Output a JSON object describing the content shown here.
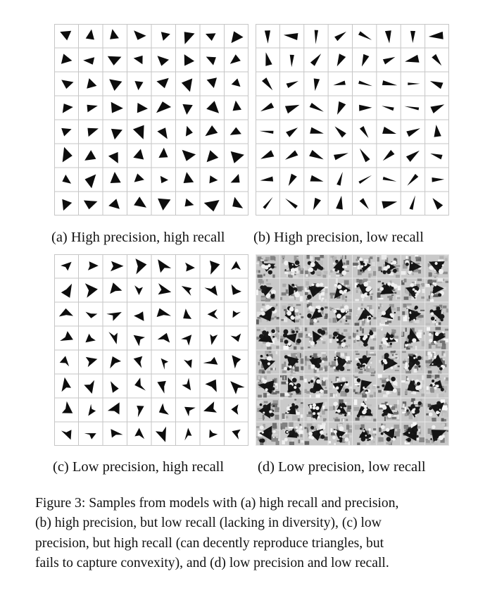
{
  "figure": {
    "panels": [
      {
        "id": "a",
        "caption": "(a) High precision, high recall",
        "style": "clean",
        "seed": 11
      },
      {
        "id": "b",
        "caption": "(b) High precision, low recall",
        "style": "clean-narrow",
        "seed": 23
      },
      {
        "id": "c",
        "caption": "(c) Low precision, high recall",
        "style": "irregular",
        "seed": 37
      },
      {
        "id": "d",
        "caption": "(d) Low precision, low recall",
        "style": "noisy",
        "seed": 53
      }
    ],
    "grid": {
      "rows": 8,
      "cols": 8
    },
    "caption_label": "Figure 3:",
    "caption_lines": [
      "Samples from models with (a) high recall and precision,",
      "(b) high precision, but low recall (lacking in diversity), (c) low",
      "precision, but high recall (can decently reproduce triangles, but",
      "fails to capture convexity), and (d) low precision and low recall."
    ]
  }
}
